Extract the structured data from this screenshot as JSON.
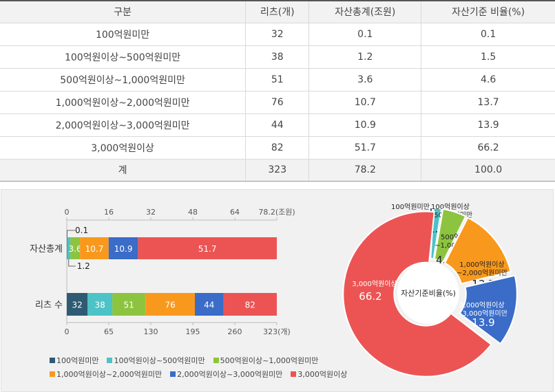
{
  "table": {
    "headers": [
      "구분",
      "리츠(개)",
      "자산총계(조원)",
      "자산기준 비율(%)"
    ],
    "rows": [
      [
        "100억원미만",
        "32",
        "0.1",
        "0.1"
      ],
      [
        "100억원이상~500억원미만",
        "38",
        "1.2",
        "1.5"
      ],
      [
        "500억원이상~1,000억원미만",
        "51",
        "3.6",
        "4.6"
      ],
      [
        "1,000억원이상~2,000억원미만",
        "76",
        "10.7",
        "13.7"
      ],
      [
        "2,000억원이상~3,000억원미만",
        "44",
        "10.9",
        "13.9"
      ],
      [
        "3,000억원이상",
        "82",
        "51.7",
        "66.2"
      ]
    ],
    "total": [
      "계",
      "323",
      "78.2",
      "100.0"
    ]
  },
  "chart_data": [
    {
      "type": "bar",
      "orientation": "horizontal-stacked",
      "categories": [
        "자산총계",
        "리츠 수"
      ],
      "top_axis": {
        "ticks": [
          "0",
          "16",
          "32",
          "48",
          "64",
          "78.2(조원)"
        ],
        "range": [
          0,
          78.2
        ]
      },
      "bottom_axis": {
        "ticks": [
          "0",
          "65",
          "130",
          "195",
          "260",
          "323(개)"
        ],
        "range": [
          0,
          323
        ]
      },
      "series": [
        {
          "name": "100억원미만",
          "color": "#2e5a73",
          "values": [
            0.1,
            32
          ],
          "labels": [
            "0.1",
            "32"
          ]
        },
        {
          "name": "100억원이상~500억원미만",
          "color": "#4cc3c6",
          "values": [
            1.2,
            38
          ],
          "labels": [
            "1.2",
            "38"
          ]
        },
        {
          "name": "500억원이상~1,000억원미만",
          "color": "#8dc43f",
          "values": [
            3.6,
            51
          ],
          "labels": [
            "3.6",
            "51"
          ]
        },
        {
          "name": "1,000억원이상~2,000억원미만",
          "color": "#f8991d",
          "values": [
            10.7,
            76
          ],
          "labels": [
            "10.7",
            "76"
          ]
        },
        {
          "name": "2,000억원이상~3,000억원미만",
          "color": "#3a6cc8",
          "values": [
            10.9,
            44
          ],
          "labels": [
            "10.9",
            "44"
          ]
        },
        {
          "name": "3,000억원이상",
          "color": "#ec5454",
          "values": [
            51.7,
            82
          ],
          "labels": [
            "51.7",
            "82"
          ]
        }
      ]
    },
    {
      "type": "pie",
      "variant": "donut",
      "center_label": "자산기준비율(%)",
      "slices": [
        {
          "label_lines": [
            "100억원미만"
          ],
          "value": 0.1,
          "value_label": "0.1",
          "color": "#2e5a73"
        },
        {
          "label_lines": [
            "100억원이상",
            "~500억원미만"
          ],
          "value": 1.5,
          "value_label": "1.5",
          "color": "#4cc3c6"
        },
        {
          "label_lines": [
            "500억원이상",
            "~1,000억원미만"
          ],
          "value": 4.6,
          "value_label": "4.6",
          "color": "#8dc43f"
        },
        {
          "label_lines": [
            "1,000억원이상",
            "~2,000억원미만"
          ],
          "value": 13.7,
          "value_label": "13.7",
          "color": "#f8991d"
        },
        {
          "label_lines": [
            "2,000억원이상",
            "~3,000억원미만"
          ],
          "value": 13.9,
          "value_label": "13.9",
          "color": "#3a6cc8"
        },
        {
          "label_lines": [
            "3,000억원이상"
          ],
          "value": 66.2,
          "value_label": "66.2",
          "color": "#ec5454"
        }
      ]
    }
  ]
}
